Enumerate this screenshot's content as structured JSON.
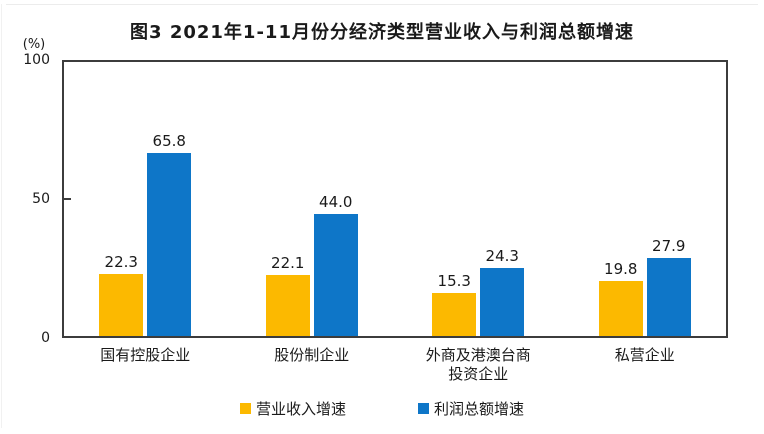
{
  "title": "图3 2021年1-11月份分经济类型营业收入与利润总额增速",
  "colors": {
    "revenue_growth": "#FCB900",
    "profit_growth": "#0E76C8",
    "axis_border": "#3C3C3C",
    "text": "#1A1A1A"
  },
  "chart_data": {
    "type": "bar",
    "title": "图3 2021年1-11月份分经济类型营业收入与利润总额增速",
    "categories": [
      "国有控股企业",
      "股份制企业",
      "外商及港澳台商\n投资企业",
      "私营企业"
    ],
    "series": [
      {
        "name": "营业收入增速",
        "key": "revenue-growth",
        "color": "#FCB900",
        "values": [
          22.3,
          22.1,
          15.3,
          19.8
        ]
      },
      {
        "name": "利润总额增速",
        "key": "profit-growth",
        "color": "#0E76C8",
        "values": [
          65.8,
          44.0,
          24.3,
          27.9
        ]
      }
    ],
    "ylabel": "(%)",
    "ylim": [
      0,
      100
    ],
    "yticks": [
      0,
      50,
      100
    ],
    "value_label_decimals": 1,
    "grid": false,
    "legend_position": "bottom"
  }
}
